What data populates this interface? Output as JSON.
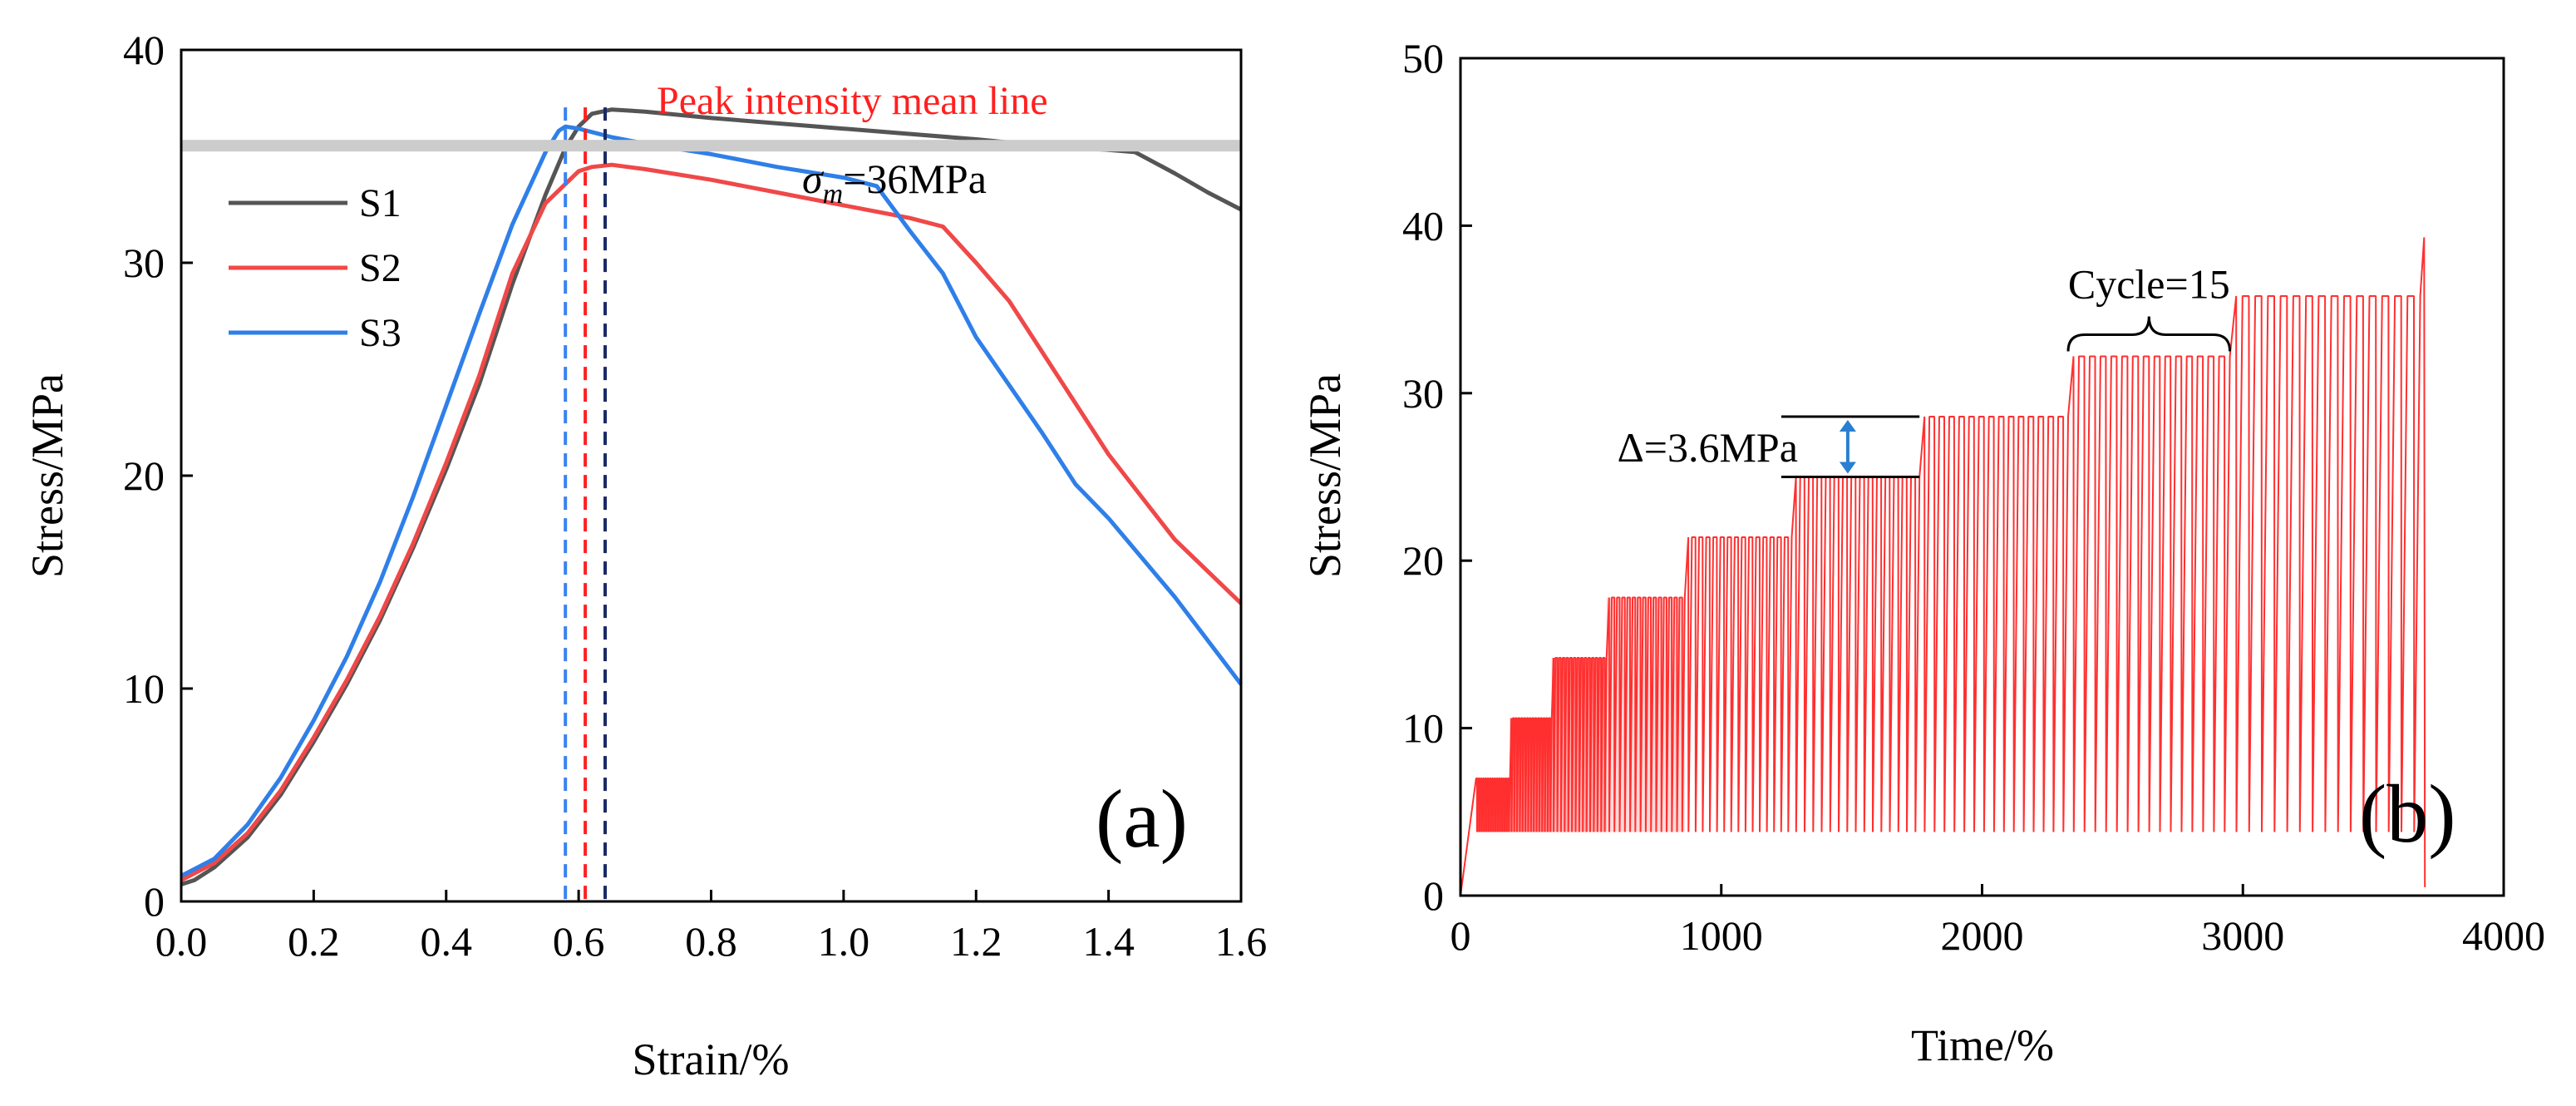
{
  "chart_data": [
    {
      "type": "line",
      "panel_label": "(a)",
      "xlabel": "Strain/%",
      "ylabel": "Stress/MPa",
      "xlim": [
        0.0,
        1.6
      ],
      "ylim": [
        0,
        40
      ],
      "xticks": [
        "0.0",
        "0.2",
        "0.4",
        "0.6",
        "0.8",
        "1.0",
        "1.2",
        "1.4",
        "1.6"
      ],
      "yticks": [
        "0",
        "10",
        "20",
        "30",
        "40"
      ],
      "legend": [
        "S1",
        "S2",
        "S3"
      ],
      "legend_position": "upper-left",
      "mean_line": {
        "value": 35.5,
        "label": "Peak intensity mean line",
        "annotation_symbol": "σ",
        "annotation_sub": "m",
        "annotation_value": "=36MPa"
      },
      "peak_markers": [
        {
          "series": "S3",
          "x": 0.58,
          "color": "#3a82f0"
        },
        {
          "series": "S2",
          "x": 0.61,
          "color": "#ff2020"
        },
        {
          "series": "S1",
          "x": 0.64,
          "color": "#1a2a66"
        }
      ],
      "series": [
        {
          "name": "S1",
          "color": "#555555",
          "points": [
            [
              0.0,
              0.8
            ],
            [
              0.02,
              1.0
            ],
            [
              0.05,
              1.6
            ],
            [
              0.1,
              3.0
            ],
            [
              0.15,
              5.0
            ],
            [
              0.2,
              7.5
            ],
            [
              0.25,
              10.2
            ],
            [
              0.3,
              13.2
            ],
            [
              0.35,
              16.6
            ],
            [
              0.4,
              20.3
            ],
            [
              0.45,
              24.3
            ],
            [
              0.5,
              29.0
            ],
            [
              0.55,
              33.2
            ],
            [
              0.58,
              35.4
            ],
            [
              0.6,
              36.4
            ],
            [
              0.62,
              37.0
            ],
            [
              0.65,
              37.2
            ],
            [
              0.7,
              37.1
            ],
            [
              0.8,
              36.8
            ],
            [
              1.0,
              36.3
            ],
            [
              1.2,
              35.8
            ],
            [
              1.3,
              35.5
            ],
            [
              1.4,
              35.3
            ],
            [
              1.44,
              35.2
            ],
            [
              1.5,
              34.2
            ],
            [
              1.55,
              33.3
            ],
            [
              1.6,
              32.5
            ]
          ]
        },
        {
          "name": "S2",
          "color": "#f04848",
          "points": [
            [
              0.0,
              1.0
            ],
            [
              0.05,
              1.8
            ],
            [
              0.1,
              3.2
            ],
            [
              0.15,
              5.2
            ],
            [
              0.2,
              7.7
            ],
            [
              0.25,
              10.4
            ],
            [
              0.3,
              13.4
            ],
            [
              0.35,
              16.8
            ],
            [
              0.4,
              20.6
            ],
            [
              0.45,
              24.7
            ],
            [
              0.5,
              29.5
            ],
            [
              0.55,
              32.8
            ],
            [
              0.6,
              34.3
            ],
            [
              0.62,
              34.5
            ],
            [
              0.65,
              34.6
            ],
            [
              0.7,
              34.4
            ],
            [
              0.8,
              33.9
            ],
            [
              0.9,
              33.3
            ],
            [
              1.0,
              32.7
            ],
            [
              1.1,
              32.1
            ],
            [
              1.15,
              31.7
            ],
            [
              1.2,
              30.0
            ],
            [
              1.25,
              28.2
            ],
            [
              1.3,
              25.8
            ],
            [
              1.35,
              23.4
            ],
            [
              1.4,
              21.0
            ],
            [
              1.5,
              17.0
            ],
            [
              1.6,
              14.0
            ]
          ]
        },
        {
          "name": "S3",
          "color": "#2f7fe8",
          "points": [
            [
              0.0,
              1.2
            ],
            [
              0.05,
              2.0
            ],
            [
              0.1,
              3.6
            ],
            [
              0.15,
              5.8
            ],
            [
              0.2,
              8.5
            ],
            [
              0.25,
              11.5
            ],
            [
              0.3,
              15.0
            ],
            [
              0.35,
              19.0
            ],
            [
              0.4,
              23.3
            ],
            [
              0.45,
              27.6
            ],
            [
              0.5,
              31.8
            ],
            [
              0.55,
              35.2
            ],
            [
              0.57,
              36.2
            ],
            [
              0.58,
              36.4
            ],
            [
              0.6,
              36.3
            ],
            [
              0.65,
              35.9
            ],
            [
              0.7,
              35.6
            ],
            [
              0.8,
              35.1
            ],
            [
              0.9,
              34.5
            ],
            [
              1.0,
              34.0
            ],
            [
              1.05,
              33.6
            ],
            [
              1.1,
              31.5
            ],
            [
              1.15,
              29.5
            ],
            [
              1.2,
              26.5
            ],
            [
              1.3,
              22.0
            ],
            [
              1.35,
              19.6
            ],
            [
              1.4,
              18.0
            ],
            [
              1.5,
              14.3
            ],
            [
              1.6,
              10.2
            ]
          ]
        }
      ]
    },
    {
      "type": "line",
      "panel_label": "(b)",
      "xlabel": "Time/%",
      "ylabel": "Stress/MPa",
      "xlim": [
        0,
        4000
      ],
      "ylim": [
        0,
        50
      ],
      "xticks": [
        "0",
        "1000",
        "2000",
        "3000",
        "4000"
      ],
      "yticks": [
        "0",
        "10",
        "20",
        "30",
        "40",
        "50"
      ],
      "color": "#ff3030",
      "cycle_min": 3.8,
      "final_peak": 39.3,
      "final_drop": 0.5,
      "stages": [
        {
          "t_start": 0,
          "t_end": 60,
          "peak": 7.0,
          "cycles": 1
        },
        {
          "t_start": 60,
          "t_end": 190,
          "peak": 7.0,
          "cycles": 15
        },
        {
          "t_start": 190,
          "t_end": 350,
          "peak": 10.6,
          "cycles": 15
        },
        {
          "t_start": 350,
          "t_end": 560,
          "peak": 14.2,
          "cycles": 15
        },
        {
          "t_start": 560,
          "t_end": 860,
          "peak": 17.8,
          "cycles": 15
        },
        {
          "t_start": 860,
          "t_end": 1270,
          "peak": 21.4,
          "cycles": 15
        },
        {
          "t_start": 1270,
          "t_end": 1760,
          "peak": 25.0,
          "cycles": 15
        },
        {
          "t_start": 1760,
          "t_end": 2330,
          "peak": 28.6,
          "cycles": 15
        },
        {
          "t_start": 2330,
          "t_end": 2950,
          "peak": 32.2,
          "cycles": 15
        },
        {
          "t_start": 2950,
          "t_end": 3680,
          "peak": 35.8,
          "cycles": 15
        }
      ],
      "annotations": {
        "delta": {
          "label": "Δ=3.6MPa",
          "low": 25.0,
          "high": 28.6,
          "t_left": 1230,
          "t_right": 1760
        },
        "cycle": {
          "label": "Cycle=15",
          "t_left": 2330,
          "t_right": 2950,
          "y": 32.2
        }
      }
    }
  ]
}
